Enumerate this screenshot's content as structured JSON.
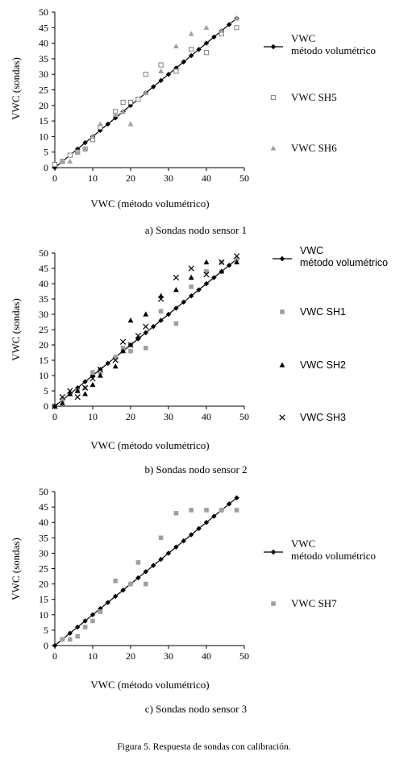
{
  "figure_caption": "Figura 5. Respuesta de sondas con calibración.",
  "chart_data": [
    {
      "type": "scatter",
      "caption": "a) Sondas nodo sensor 1",
      "xlabel": "VWC (método volumétrico)",
      "ylabel": "VWC (sondas)",
      "xlim": [
        0,
        50
      ],
      "ylim": [
        0,
        50
      ],
      "xticks": [
        "0",
        "10",
        "20",
        "30",
        "40",
        "50"
      ],
      "yticks": [
        "0",
        "5",
        "10",
        "15",
        "20",
        "25",
        "30",
        "35",
        "40",
        "45",
        "50"
      ],
      "series": [
        {
          "name": "VWC método volumétrico",
          "legend": [
            "VWC",
            "método volumétrico"
          ],
          "marker": "diamond-line",
          "color": "#000000",
          "x": [
            0,
            2,
            4,
            6,
            8,
            10,
            12,
            14,
            16,
            18,
            20,
            22,
            24,
            26,
            28,
            30,
            32,
            34,
            36,
            38,
            40,
            42,
            44,
            46,
            48
          ],
          "y": [
            0,
            2,
            4,
            6,
            8,
            10,
            12,
            14,
            16,
            18,
            20,
            22,
            24,
            26,
            28,
            30,
            32,
            34,
            36,
            38,
            40,
            42,
            44,
            46,
            48
          ]
        },
        {
          "name": "VWC SH5",
          "legend": [
            "VWC SH5"
          ],
          "marker": "open-square",
          "color": "#808080",
          "x": [
            0,
            2,
            4,
            6,
            8,
            10,
            12,
            16,
            18,
            20,
            22,
            24,
            28,
            32,
            36,
            40,
            44,
            48
          ],
          "y": [
            1,
            2,
            4,
            5,
            6,
            9,
            13,
            18,
            21,
            21,
            22,
            30,
            33,
            31,
            38,
            37,
            43,
            45
          ]
        },
        {
          "name": "VWC SH6",
          "legend": [
            "VWC SH6"
          ],
          "marker": "triangle",
          "color": "#a0a0a0",
          "x": [
            2,
            4,
            6,
            8,
            10,
            12,
            16,
            18,
            20,
            24,
            28,
            32,
            36,
            40,
            44,
            48
          ],
          "y": [
            2,
            2,
            5,
            6,
            10,
            14,
            17,
            18,
            14,
            24,
            31,
            39,
            43,
            45,
            44,
            48
          ]
        }
      ]
    },
    {
      "type": "scatter",
      "caption": "b) Sondas nodo sensor 2",
      "xlabel": "VWC (método volumétrico)",
      "ylabel": "VWC (sondas)",
      "xlim": [
        0,
        50
      ],
      "ylim": [
        0,
        50
      ],
      "xticks": [
        "0",
        "10",
        "20",
        "30",
        "40",
        "50"
      ],
      "yticks": [
        "0",
        "5",
        "10",
        "15",
        "20",
        "25",
        "30",
        "35",
        "40",
        "45",
        "50"
      ],
      "series": [
        {
          "name": "VWC método volumétrico",
          "legend": [
            "VWC",
            "método volumétrico"
          ],
          "marker": "diamond-line",
          "color": "#000000",
          "x": [
            0,
            2,
            4,
            6,
            8,
            10,
            12,
            14,
            16,
            18,
            20,
            22,
            24,
            26,
            28,
            30,
            32,
            34,
            36,
            38,
            40,
            42,
            44,
            46,
            48
          ],
          "y": [
            0,
            2,
            4,
            6,
            8,
            10,
            12,
            14,
            16,
            18,
            20,
            22,
            24,
            26,
            28,
            30,
            32,
            34,
            36,
            38,
            40,
            42,
            44,
            46,
            48
          ]
        },
        {
          "name": "VWC SH1",
          "legend": [
            "VWC SH1"
          ],
          "marker": "square",
          "color": "#a0a0a0",
          "x": [
            2,
            4,
            6,
            8,
            10,
            12,
            16,
            18,
            20,
            24,
            28,
            32,
            36,
            40,
            44,
            48
          ],
          "y": [
            2,
            4,
            5,
            6,
            11,
            11,
            16,
            19,
            18,
            19,
            31,
            27,
            39,
            44,
            47,
            48
          ]
        },
        {
          "name": "VWC SH2",
          "legend": [
            "VWC SH2"
          ],
          "marker": "triangle",
          "color": "#000000",
          "x": [
            0,
            2,
            4,
            6,
            8,
            10,
            12,
            16,
            18,
            20,
            24,
            28,
            32,
            36,
            40,
            44,
            48
          ],
          "y": [
            0,
            1,
            4,
            5,
            4,
            7,
            10,
            13,
            18,
            28,
            30,
            36,
            38,
            42,
            47,
            44,
            47
          ]
        },
        {
          "name": "VWC SH3",
          "legend": [
            "VWC SH3"
          ],
          "marker": "cross",
          "color": "#000000",
          "x": [
            0,
            2,
            4,
            6,
            8,
            10,
            12,
            16,
            18,
            20,
            22,
            24,
            28,
            32,
            36,
            40,
            44,
            48
          ],
          "y": [
            0,
            3,
            5,
            3,
            6,
            9,
            12,
            15,
            21,
            20,
            23,
            26,
            35,
            42,
            45,
            43,
            47,
            49
          ]
        }
      ]
    },
    {
      "type": "scatter",
      "caption": "c) Sondas nodo sensor 3",
      "xlabel": "VWC (método volumétrico)",
      "ylabel": "VWC (sondas)",
      "xlim": [
        0,
        50
      ],
      "ylim": [
        0,
        50
      ],
      "xticks": [
        "0",
        "10",
        "20",
        "30",
        "40",
        "50"
      ],
      "yticks": [
        "0",
        "5",
        "10",
        "15",
        "20",
        "25",
        "30",
        "35",
        "40",
        "45",
        "50"
      ],
      "series": [
        {
          "name": "VWC método volumétrico",
          "legend": [
            "VWC",
            "método volumétrico"
          ],
          "marker": "diamond-line",
          "color": "#000000",
          "x": [
            0,
            2,
            4,
            6,
            8,
            10,
            12,
            14,
            16,
            18,
            20,
            22,
            24,
            26,
            28,
            30,
            32,
            34,
            36,
            38,
            40,
            42,
            44,
            46,
            48
          ],
          "y": [
            0,
            2,
            4,
            6,
            8,
            10,
            12,
            14,
            16,
            18,
            20,
            22,
            24,
            26,
            28,
            30,
            32,
            34,
            36,
            38,
            40,
            42,
            44,
            46,
            48
          ]
        },
        {
          "name": "VWC SH7",
          "legend": [
            "VWC SH7"
          ],
          "marker": "square",
          "color": "#a0a0a0",
          "x": [
            2,
            4,
            6,
            8,
            10,
            12,
            16,
            20,
            22,
            24,
            28,
            32,
            36,
            40,
            44,
            48
          ],
          "y": [
            2,
            2,
            3,
            6,
            8,
            11,
            21,
            20,
            27,
            20,
            35,
            43,
            44,
            44,
            44,
            44
          ]
        }
      ]
    }
  ]
}
